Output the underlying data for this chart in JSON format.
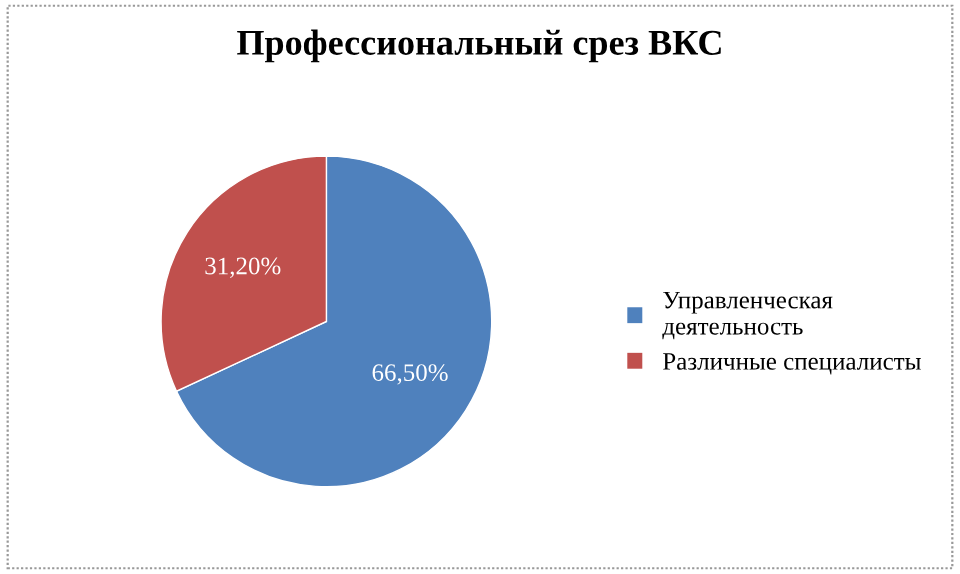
{
  "chart_data": {
    "type": "pie",
    "title": "Профессиональный срез ВКС",
    "categories": [
      "Управленческая деятельность",
      "Различные специалисты"
    ],
    "values": [
      66.5,
      31.2
    ],
    "colors": [
      "#4f81bd",
      "#c0504d"
    ],
    "value_labels": [
      "66,50%",
      "31,20%"
    ],
    "legend": "right"
  }
}
